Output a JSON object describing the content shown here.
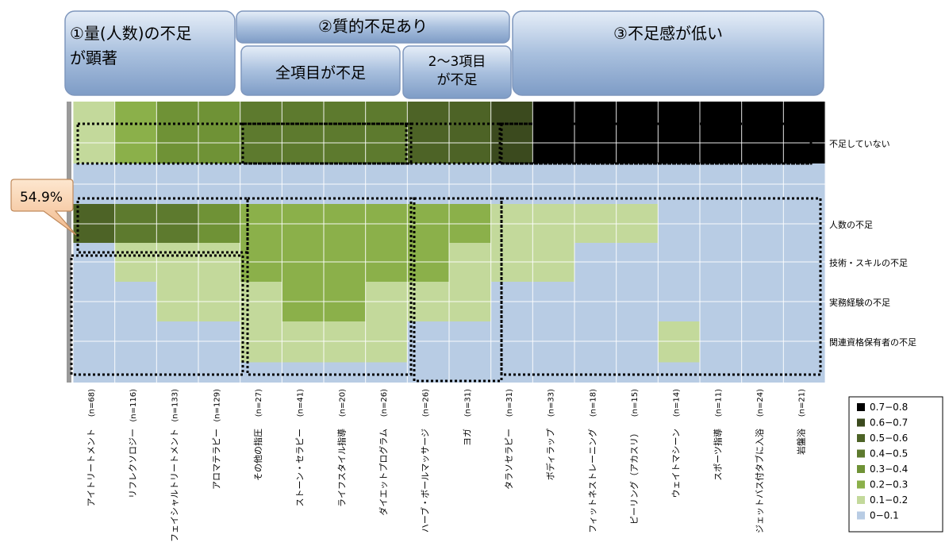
{
  "headers": {
    "h1": "①量(人数)の不足が顕著",
    "h1_line1": "①量(人数)の不足",
    "h1_line2": "が顕著",
    "h2": "②質的不足あり",
    "h2a": "全項目が不足",
    "h2b": "2～3項目が不足",
    "h2b_line1": "2～3項目",
    "h2b_line2": "が不足",
    "h3": "③不足感が低い"
  },
  "callout": "54.9%",
  "chart_data": {
    "type": "heatmap",
    "title": "",
    "x": [
      {
        "name": "アイトリートメント",
        "n": "(n=68)"
      },
      {
        "name": "リフレクソロジー",
        "n": "(n=116)"
      },
      {
        "name": "フェイシャルトリートメント",
        "n": "(n=133)"
      },
      {
        "name": "アロマテラピー",
        "n": "(n=129)"
      },
      {
        "name": "その他の指圧",
        "n": "(n=27)"
      },
      {
        "name": "ストーン・セラピー",
        "n": "(n=41)"
      },
      {
        "name": "ライフスタイル指導",
        "n": "(n=20)"
      },
      {
        "name": "ダイエットプログラム",
        "n": "(n=26)"
      },
      {
        "name": "ハーブ・ボールマッサージ",
        "n": "(n=26)"
      },
      {
        "name": "ヨガ",
        "n": "(n=31)"
      },
      {
        "name": "タラソセラピー",
        "n": "(n=31)"
      },
      {
        "name": "ボディラップ",
        "n": "(n=33)"
      },
      {
        "name": "フィットネストレーニング",
        "n": "(n=18)"
      },
      {
        "name": "ピーリング（アカスリ）",
        "n": "(n=15)"
      },
      {
        "name": "ウェイトマシーン",
        "n": "(n=14)"
      },
      {
        "name": "スポーツ指導",
        "n": "(n=11)"
      },
      {
        "name": "ジェットバス付タブに入浴",
        "n": "(n=24)"
      },
      {
        "name": "岩盤浴",
        "n": "(n=21)"
      }
    ],
    "y": [
      "不足していない",
      "",
      "人数の不足",
      "技術・スキルの不足",
      "実務経験の不足",
      "関連資格保有者の不足"
    ],
    "values": [
      [
        0.15,
        0.25,
        0.35,
        0.35,
        0.45,
        0.45,
        0.45,
        0.45,
        0.55,
        0.55,
        0.65,
        0.75,
        0.75,
        0.75,
        0.75,
        0.75,
        0.75,
        0.75
      ],
      [
        0.05,
        0.05,
        0.05,
        0.05,
        0.05,
        0.05,
        0.05,
        0.05,
        0.05,
        0.05,
        0.05,
        0.05,
        0.05,
        0.05,
        0.05,
        0.05,
        0.05,
        0.05
      ],
      [
        0.549,
        0.45,
        0.42,
        0.35,
        0.25,
        0.25,
        0.25,
        0.25,
        0.25,
        0.25,
        0.15,
        0.15,
        0.15,
        0.15,
        0.05,
        0.05,
        0.05,
        0.05
      ],
      [
        0.05,
        0.15,
        0.15,
        0.15,
        0.25,
        0.25,
        0.25,
        0.25,
        0.25,
        0.15,
        0.15,
        0.15,
        0.05,
        0.05,
        0.05,
        0.05,
        0.05,
        0.05
      ],
      [
        0.05,
        0.05,
        0.15,
        0.15,
        0.15,
        0.25,
        0.25,
        0.15,
        0.15,
        0.15,
        0.05,
        0.05,
        0.05,
        0.05,
        0.05,
        0.05,
        0.05,
        0.05
      ],
      [
        0.05,
        0.05,
        0.05,
        0.05,
        0.15,
        0.15,
        0.15,
        0.15,
        0.05,
        0.05,
        0.05,
        0.05,
        0.05,
        0.05,
        0.15,
        0.05,
        0.05,
        0.05
      ]
    ],
    "legend": [
      {
        "label": "0.7−0.8",
        "color": "#000000"
      },
      {
        "label": "0.6−0.7",
        "color": "#3b4a1e"
      },
      {
        "label": "0.5−0.6",
        "color": "#4d6326"
      },
      {
        "label": "0.4−0.5",
        "color": "#5d7a2e"
      },
      {
        "label": "0.3−0.4",
        "color": "#6f9236"
      },
      {
        "label": "0.2−0.3",
        "color": "#8bb04a"
      },
      {
        "label": "0.1−0.2",
        "color": "#c3d99b"
      },
      {
        "label": "0−0.1",
        "color": "#b8cce4"
      }
    ],
    "legend_position": "bottom-right",
    "grid": true
  }
}
